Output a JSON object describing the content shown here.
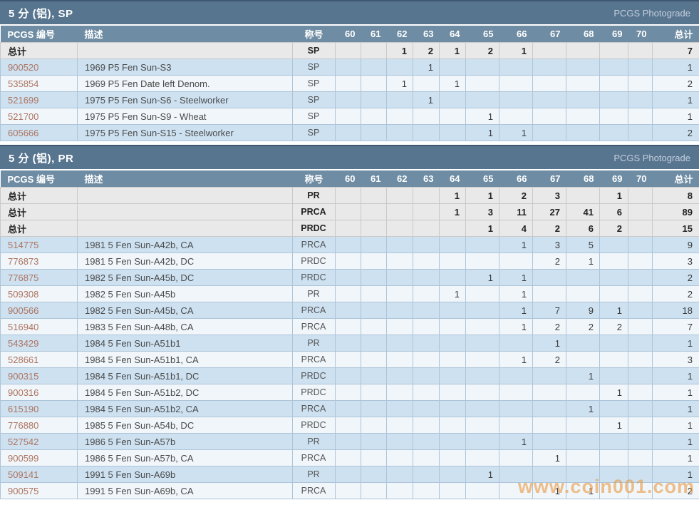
{
  "columns": {
    "pcgs_no": "PCGS 编号",
    "description": "描述",
    "designation": "称号",
    "grades": [
      "60",
      "61",
      "62",
      "63",
      "64",
      "65",
      "66",
      "67",
      "68",
      "69",
      "70"
    ],
    "total": "总计"
  },
  "total_label": "总计",
  "watermark": "www.coin001.com",
  "sections": [
    {
      "title": "5 分 (铝), SP",
      "brand": "PCGS Photograde",
      "total_rows": [
        {
          "designation": "SP",
          "grades": [
            "",
            "",
            "1",
            "2",
            "1",
            "2",
            "1",
            "",
            "",
            "",
            ""
          ],
          "total": "7"
        }
      ],
      "rows": [
        {
          "pcgs": "900520",
          "desc": "1969 P5 Fen Sun-S3",
          "designation": "SP",
          "grades": [
            "",
            "",
            "",
            "1",
            "",
            "",
            "",
            "",
            "",
            "",
            ""
          ],
          "total": "1"
        },
        {
          "pcgs": "535854",
          "desc": "1969 P5 Fen Date left Denom.",
          "designation": "SP",
          "grades": [
            "",
            "",
            "1",
            "",
            "1",
            "",
            "",
            "",
            "",
            "",
            ""
          ],
          "total": "2"
        },
        {
          "pcgs": "521699",
          "desc": "1975 P5 Fen Sun-S6 - Steelworker",
          "designation": "SP",
          "grades": [
            "",
            "",
            "",
            "1",
            "",
            "",
            "",
            "",
            "",
            "",
            ""
          ],
          "total": "1"
        },
        {
          "pcgs": "521700",
          "desc": "1975 P5 Fen Sun-S9 - Wheat",
          "designation": "SP",
          "grades": [
            "",
            "",
            "",
            "",
            "",
            "1",
            "",
            "",
            "",
            "",
            ""
          ],
          "total": "1"
        },
        {
          "pcgs": "605666",
          "desc": "1975 P5 Fen Sun-S15 - Steelworker",
          "designation": "SP",
          "grades": [
            "",
            "",
            "",
            "",
            "",
            "1",
            "1",
            "",
            "",
            "",
            ""
          ],
          "total": "2"
        }
      ]
    },
    {
      "title": "5 分 (铝), PR",
      "brand": "PCGS Photograde",
      "total_rows": [
        {
          "designation": "PR",
          "grades": [
            "",
            "",
            "",
            "",
            "1",
            "1",
            "2",
            "3",
            "",
            "1",
            ""
          ],
          "total": "8"
        },
        {
          "designation": "PRCA",
          "grades": [
            "",
            "",
            "",
            "",
            "1",
            "3",
            "11",
            "27",
            "41",
            "6",
            ""
          ],
          "total": "89"
        },
        {
          "designation": "PRDC",
          "grades": [
            "",
            "",
            "",
            "",
            "",
            "1",
            "4",
            "2",
            "6",
            "2",
            ""
          ],
          "total": "15"
        }
      ],
      "rows": [
        {
          "pcgs": "514775",
          "desc": "1981 5 Fen Sun-A42b, CA",
          "designation": "PRCA",
          "grades": [
            "",
            "",
            "",
            "",
            "",
            "",
            "1",
            "3",
            "5",
            "",
            ""
          ],
          "total": "9"
        },
        {
          "pcgs": "776873",
          "desc": "1981 5 Fen Sun-A42b, DC",
          "designation": "PRDC",
          "grades": [
            "",
            "",
            "",
            "",
            "",
            "",
            "",
            "2",
            "1",
            "",
            ""
          ],
          "total": "3"
        },
        {
          "pcgs": "776875",
          "desc": "1982 5 Fen Sun-A45b, DC",
          "designation": "PRDC",
          "grades": [
            "",
            "",
            "",
            "",
            "",
            "1",
            "1",
            "",
            "",
            "",
            ""
          ],
          "total": "2"
        },
        {
          "pcgs": "509308",
          "desc": "1982 5 Fen Sun-A45b",
          "designation": "PR",
          "grades": [
            "",
            "",
            "",
            "",
            "1",
            "",
            "1",
            "",
            "",
            "",
            ""
          ],
          "total": "2"
        },
        {
          "pcgs": "900566",
          "desc": "1982 5 Fen Sun-A45b, CA",
          "designation": "PRCA",
          "grades": [
            "",
            "",
            "",
            "",
            "",
            "",
            "1",
            "7",
            "9",
            "1",
            ""
          ],
          "total": "18"
        },
        {
          "pcgs": "516940",
          "desc": "1983 5 Fen Sun-A48b, CA",
          "designation": "PRCA",
          "grades": [
            "",
            "",
            "",
            "",
            "",
            "",
            "1",
            "2",
            "2",
            "2",
            ""
          ],
          "total": "7"
        },
        {
          "pcgs": "543429",
          "desc": "1984 5 Fen Sun-A51b1",
          "designation": "PR",
          "grades": [
            "",
            "",
            "",
            "",
            "",
            "",
            "",
            "1",
            "",
            "",
            ""
          ],
          "total": "1"
        },
        {
          "pcgs": "528661",
          "desc": "1984 5 Fen Sun-A51b1, CA",
          "designation": "PRCA",
          "grades": [
            "",
            "",
            "",
            "",
            "",
            "",
            "1",
            "2",
            "",
            "",
            ""
          ],
          "total": "3"
        },
        {
          "pcgs": "900315",
          "desc": "1984 5 Fen Sun-A51b1, DC",
          "designation": "PRDC",
          "grades": [
            "",
            "",
            "",
            "",
            "",
            "",
            "",
            "",
            "1",
            "",
            ""
          ],
          "total": "1"
        },
        {
          "pcgs": "900316",
          "desc": "1984 5 Fen Sun-A51b2, DC",
          "designation": "PRDC",
          "grades": [
            "",
            "",
            "",
            "",
            "",
            "",
            "",
            "",
            "",
            "1",
            ""
          ],
          "total": "1"
        },
        {
          "pcgs": "615190",
          "desc": "1984 5 Fen Sun-A51b2, CA",
          "designation": "PRCA",
          "grades": [
            "",
            "",
            "",
            "",
            "",
            "",
            "",
            "",
            "1",
            "",
            ""
          ],
          "total": "1"
        },
        {
          "pcgs": "776880",
          "desc": "1985 5 Fen Sun-A54b, DC",
          "designation": "PRDC",
          "grades": [
            "",
            "",
            "",
            "",
            "",
            "",
            "",
            "",
            "",
            "1",
            ""
          ],
          "total": "1"
        },
        {
          "pcgs": "527542",
          "desc": "1986 5 Fen Sun-A57b",
          "designation": "PR",
          "grades": [
            "",
            "",
            "",
            "",
            "",
            "",
            "1",
            "",
            "",
            "",
            ""
          ],
          "total": "1"
        },
        {
          "pcgs": "900599",
          "desc": "1986 5 Fen Sun-A57b, CA",
          "designation": "PRCA",
          "grades": [
            "",
            "",
            "",
            "",
            "",
            "",
            "",
            "1",
            "",
            "",
            ""
          ],
          "total": "1"
        },
        {
          "pcgs": "509141",
          "desc": "1991 5 Fen Sun-A69b",
          "designation": "PR",
          "grades": [
            "",
            "",
            "",
            "",
            "",
            "1",
            "",
            "",
            "",
            "",
            ""
          ],
          "total": "1"
        },
        {
          "pcgs": "900575",
          "desc": "1991 5 Fen Sun-A69b, CA",
          "designation": "PRCA",
          "grades": [
            "",
            "",
            "",
            "",
            "",
            "",
            "",
            "1",
            "1",
            "",
            ""
          ],
          "total": "2"
        }
      ]
    }
  ]
}
